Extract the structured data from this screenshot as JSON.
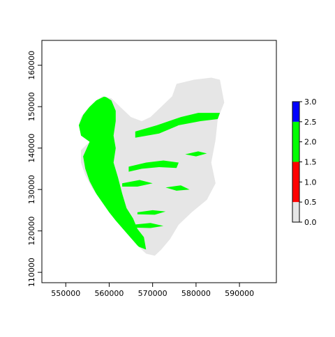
{
  "chart_data": {
    "type": "heatmap",
    "title": "",
    "xlabel": "",
    "ylabel": "",
    "xlim": [
      544500,
      598500
    ],
    "ylim": [
      107500,
      166000
    ],
    "x_ticks": [
      {
        "value": 550000,
        "label": "550000"
      },
      {
        "value": 560000,
        "label": "560000"
      },
      {
        "value": 570000,
        "label": "570000"
      },
      {
        "value": 580000,
        "label": "580000"
      },
      {
        "value": 590000,
        "label": "590000"
      }
    ],
    "y_ticks": [
      {
        "value": 110000,
        "label": "110000"
      },
      {
        "value": 120000,
        "label": "120000"
      },
      {
        "value": 130000,
        "label": "130000"
      },
      {
        "value": 140000,
        "label": "140000"
      },
      {
        "value": 150000,
        "label": "150000"
      },
      {
        "value": 160000,
        "label": "160000"
      }
    ],
    "legend": {
      "placement": "right",
      "range": [
        0,
        3
      ],
      "ticks": [
        {
          "value": 0.0,
          "label": "0.0"
        },
        {
          "value": 0.5,
          "label": "0.5"
        },
        {
          "value": 1.0,
          "label": "1.0"
        },
        {
          "value": 1.5,
          "label": "1.5"
        },
        {
          "value": 2.0,
          "label": "2.0"
        },
        {
          "value": 2.5,
          "label": "2.5"
        },
        {
          "value": 3.0,
          "label": "3.0"
        }
      ],
      "classes": [
        {
          "from": 0.0,
          "to": 0.5,
          "color": "#e6e6e6"
        },
        {
          "from": 0.5,
          "to": 1.5,
          "color": "#ff0000"
        },
        {
          "from": 1.5,
          "to": 2.5,
          "color": "#00ff00"
        },
        {
          "from": 2.5,
          "to": 3.0,
          "color": "#0000ff"
        }
      ]
    },
    "region": {
      "outline": [
        [
          575500,
          155500
        ],
        [
          579500,
          156500
        ],
        [
          583500,
          157000
        ],
        [
          585500,
          156500
        ],
        [
          586500,
          151000
        ],
        [
          585000,
          147000
        ],
        [
          584500,
          142000
        ],
        [
          583500,
          136500
        ],
        [
          584500,
          131500
        ],
        [
          582500,
          127500
        ],
        [
          579000,
          124500
        ],
        [
          576000,
          121500
        ],
        [
          574000,
          118000
        ],
        [
          572000,
          115500
        ],
        [
          570500,
          114000
        ],
        [
          568500,
          114500
        ],
        [
          566500,
          116500
        ],
        [
          564000,
          119500
        ],
        [
          561500,
          122500
        ],
        [
          560000,
          124500
        ],
        [
          558000,
          127500
        ],
        [
          556000,
          130500
        ],
        [
          554500,
          133500
        ],
        [
          553500,
          136500
        ],
        [
          553500,
          139500
        ],
        [
          555500,
          141500
        ],
        [
          553500,
          143000
        ],
        [
          553000,
          145500
        ],
        [
          553500,
          147500
        ],
        [
          555000,
          149500
        ],
        [
          557000,
          151500
        ],
        [
          558500,
          152500
        ],
        [
          560500,
          152000
        ],
        [
          562500,
          150000
        ],
        [
          565000,
          147500
        ],
        [
          567500,
          146500
        ],
        [
          569500,
          147500
        ],
        [
          572000,
          150000
        ],
        [
          574500,
          152500
        ]
      ],
      "green_band": [
        [
          559000,
          152500
        ],
        [
          560500,
          151500
        ],
        [
          561500,
          149000
        ],
        [
          561500,
          146500
        ],
        [
          561000,
          143000
        ],
        [
          561500,
          140000
        ],
        [
          561000,
          136500
        ],
        [
          562000,
          133000
        ],
        [
          563000,
          129000
        ],
        [
          564000,
          125500
        ],
        [
          565500,
          123000
        ],
        [
          566500,
          120500
        ],
        [
          568000,
          118500
        ],
        [
          568500,
          115500
        ],
        [
          566000,
          116500
        ],
        [
          563500,
          119500
        ],
        [
          561000,
          122500
        ],
        [
          559000,
          125500
        ],
        [
          557000,
          129000
        ],
        [
          555500,
          132000
        ],
        [
          554500,
          135000
        ],
        [
          554000,
          138000
        ],
        [
          555500,
          141500
        ],
        [
          553500,
          143000
        ],
        [
          553000,
          145500
        ],
        [
          554000,
          148000
        ],
        [
          555500,
          150000
        ],
        [
          557000,
          151500
        ]
      ],
      "green_patches": [
        [
          [
            566000,
            144000
          ],
          [
            571000,
            145500
          ],
          [
            576500,
            147500
          ],
          [
            580500,
            148500
          ],
          [
            585500,
            148500
          ],
          [
            585000,
            147000
          ],
          [
            581000,
            146500
          ],
          [
            576000,
            145500
          ],
          [
            571500,
            143500
          ],
          [
            566000,
            142500
          ]
        ],
        [
          [
            564500,
            135500
          ],
          [
            568500,
            136500
          ],
          [
            572500,
            137000
          ],
          [
            576000,
            136500
          ],
          [
            575500,
            135200
          ],
          [
            571500,
            135400
          ],
          [
            567500,
            135000
          ],
          [
            564500,
            134300
          ]
        ],
        [
          [
            563000,
            131500
          ],
          [
            567000,
            132300
          ],
          [
            570000,
            131500
          ],
          [
            566500,
            130700
          ],
          [
            563000,
            130700
          ]
        ],
        [
          [
            566500,
            124500
          ],
          [
            570000,
            125000
          ],
          [
            573000,
            124700
          ],
          [
            570500,
            123900
          ],
          [
            566500,
            124000
          ]
        ],
        [
          [
            565500,
            121500
          ],
          [
            569500,
            121900
          ],
          [
            572500,
            121200
          ],
          [
            569500,
            120700
          ],
          [
            566000,
            120800
          ]
        ],
        [
          [
            573000,
            130500
          ],
          [
            576500,
            131000
          ],
          [
            578500,
            130000
          ],
          [
            575500,
            129700
          ]
        ],
        [
          [
            577500,
            138500
          ],
          [
            580500,
            139200
          ],
          [
            582500,
            138700
          ],
          [
            580000,
            138000
          ]
        ]
      ]
    }
  }
}
